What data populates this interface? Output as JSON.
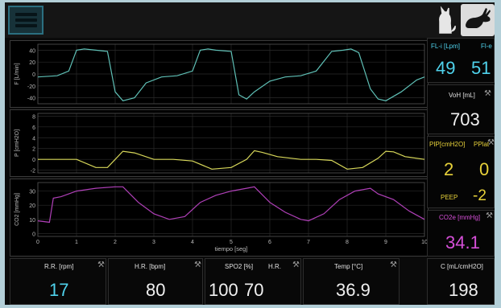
{
  "colors": {
    "flow_trace": "#5fc0b6",
    "pressure_trace": "#d8d85a",
    "co2_trace": "#b040b8",
    "cyan_value": "#4fd2ec",
    "yellow_value": "#e8d23a",
    "magenta_value": "#d64fd8"
  },
  "icons": {
    "menu": "hamburger-icon",
    "cat": "cat-icon",
    "rabbit": "rabbit-icon",
    "settings": "wrench-icon"
  },
  "plots": {
    "flow": {
      "ylabel": "F [L/min]",
      "yticks": [
        "40",
        "20",
        "0",
        "-20",
        "-40"
      ]
    },
    "pressure": {
      "ylabel": "P [cmH2O]",
      "yticks": [
        "8",
        "6",
        "4",
        "2",
        "0",
        "-2"
      ]
    },
    "co2": {
      "ylabel": "CO2 [mmHg]",
      "yticks": [
        "30",
        "20",
        "10",
        "0"
      ]
    },
    "xticks": [
      "0",
      "1",
      "2",
      "3",
      "4",
      "5",
      "6",
      "7",
      "8",
      "9",
      "10"
    ],
    "xlabel": "tiempo [seg]"
  },
  "chart_data": [
    {
      "type": "line",
      "ylabel": "F [L/min]",
      "ylim": [
        -50,
        50
      ],
      "xlim": [
        0,
        10
      ],
      "series": [
        {
          "x": [
            0,
            0.5,
            0.8,
            1.0,
            1.2,
            1.5,
            1.8,
            2.0,
            2.2,
            2.5,
            2.8,
            3.2,
            3.6,
            4.0,
            4.2,
            4.4,
            4.6,
            5.0,
            5.2,
            5.4,
            5.6,
            6.0,
            6.4,
            6.8,
            7.2,
            7.6,
            7.9,
            8.1,
            8.3,
            8.6,
            8.8,
            9.0,
            9.4,
            9.8,
            10.0
          ],
          "y": [
            -5,
            -3,
            5,
            40,
            42,
            40,
            38,
            -30,
            -45,
            -40,
            -15,
            -5,
            -3,
            5,
            40,
            42,
            40,
            38,
            -35,
            -42,
            -30,
            -12,
            -5,
            -3,
            5,
            38,
            40,
            42,
            36,
            -25,
            -42,
            -45,
            -30,
            -10,
            -5
          ]
        }
      ]
    },
    {
      "type": "line",
      "ylabel": "P [cmH2O]",
      "ylim": [
        -2.5,
        8.5
      ],
      "xlim": [
        0,
        10
      ],
      "series": [
        {
          "x": [
            0,
            1.0,
            1.5,
            1.8,
            2.0,
            2.2,
            2.5,
            3.0,
            3.5,
            4.0,
            4.5,
            5.0,
            5.4,
            5.6,
            5.8,
            6.2,
            6.8,
            7.2,
            7.6,
            8.0,
            8.4,
            8.8,
            9.0,
            9.2,
            9.5,
            10.0
          ],
          "y": [
            0,
            0,
            -1.5,
            -1.5,
            0,
            1.5,
            1.2,
            0,
            0,
            -0.3,
            -1.8,
            -1.5,
            0,
            1.6,
            1.3,
            0.5,
            0,
            0,
            -0.2,
            -1.8,
            -1.5,
            0.2,
            1.5,
            1.4,
            0.5,
            0
          ]
        }
      ]
    },
    {
      "type": "line",
      "ylabel": "CO2 [mmHg]",
      "ylim": [
        -2,
        36
      ],
      "xlim": [
        0,
        10
      ],
      "series": [
        {
          "x": [
            0,
            0.3,
            0.4,
            0.6,
            1.0,
            1.5,
            2.0,
            2.2,
            2.6,
            3.0,
            3.4,
            3.8,
            4.2,
            4.6,
            5.0,
            5.4,
            5.6,
            6.0,
            6.4,
            6.8,
            7.0,
            7.4,
            7.8,
            8.2,
            8.6,
            8.8,
            9.2,
            9.6,
            10.0
          ],
          "y": [
            9,
            8,
            25,
            26,
            30,
            32,
            33,
            33,
            22,
            14,
            10,
            12,
            22,
            27,
            30,
            32,
            33,
            22,
            15,
            10,
            9,
            14,
            24,
            30,
            32,
            28,
            24,
            16,
            10
          ]
        }
      ]
    }
  ],
  "side": {
    "fli_label": "FL-i [Lpm]",
    "fle_label": "Fl-e",
    "fli_value": "49",
    "fle_value": "51",
    "vol_label": "VoH [mL]",
    "vol_value": "703",
    "pip_label": "PIP[cmH2O]",
    "pplat_label": "PPlat",
    "pip_value": "2",
    "pplat_value": "0",
    "peep_label": "PEEP",
    "peep_value": "-2",
    "co2e_label": "CO2e [mmHg]",
    "co2e_value": "34.1"
  },
  "bottom": {
    "rr_label": "R.R. [rpm]",
    "rr_value": "17",
    "hr_label": "H.R. [bpm]",
    "hr_value": "80",
    "spo2_label": "SPO2 [%]",
    "hr2_label": "H.R.",
    "spo2_value": "100",
    "hr2_value": "70",
    "temp_label": "Temp [°C]",
    "temp_value": "36.9",
    "c_label": "C [mL/cmH2O]",
    "c_value": "198"
  }
}
